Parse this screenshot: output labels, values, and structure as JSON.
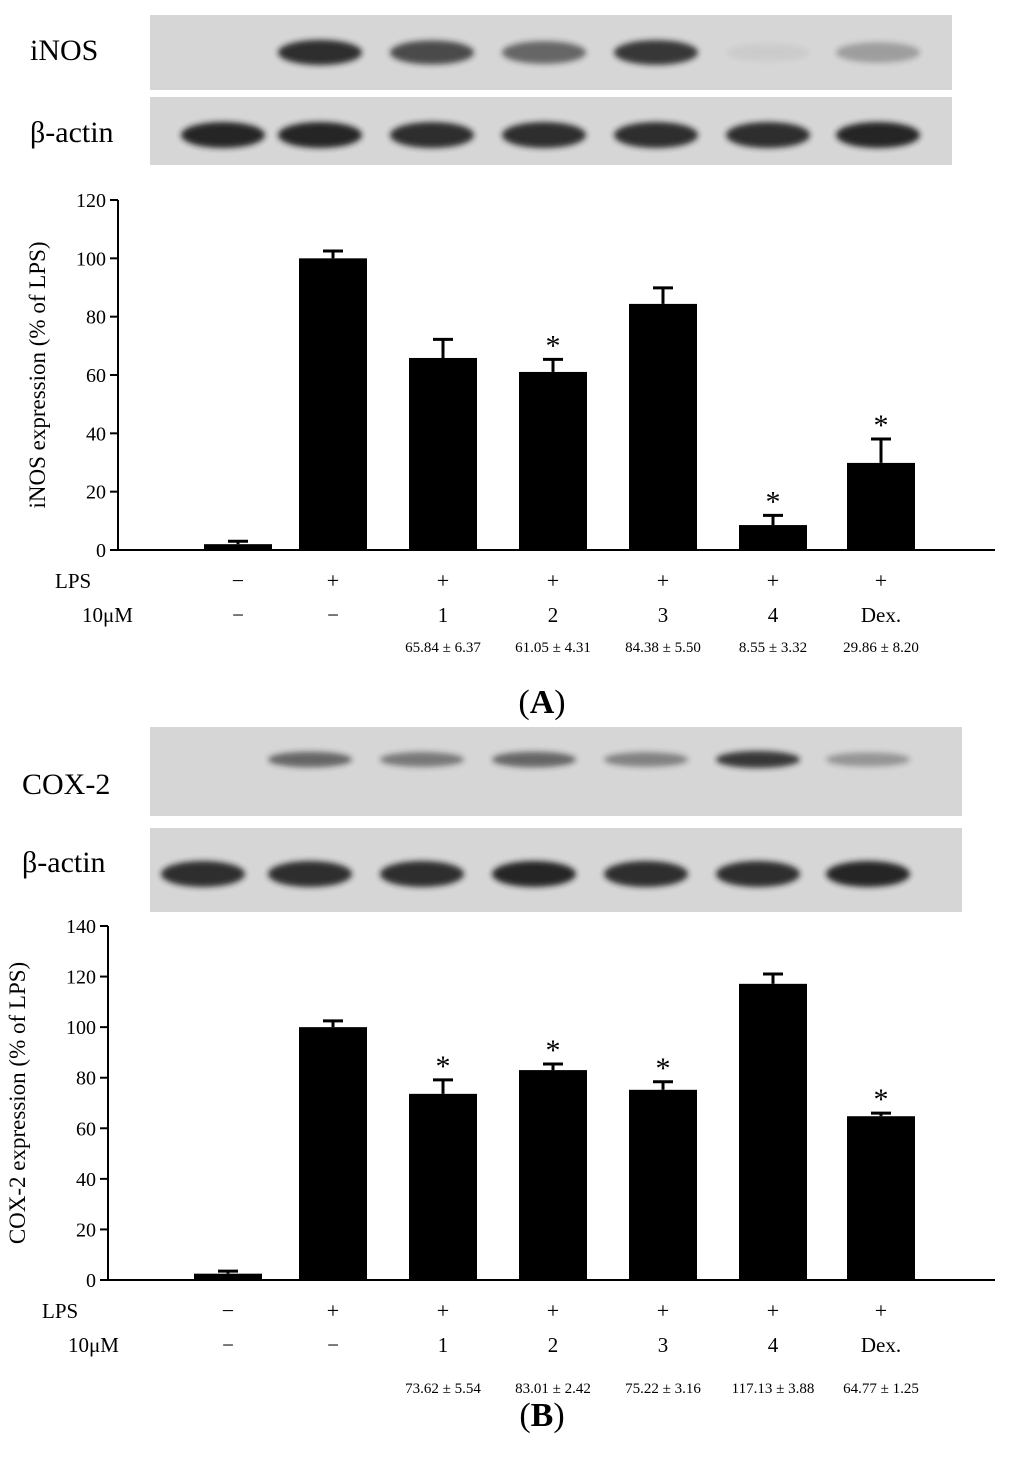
{
  "figure": {
    "panel_labels": [
      {
        "text": "A"
      },
      {
        "text": "B"
      }
    ],
    "treatment_row_labels": [
      "LPS",
      "10μM"
    ],
    "lps_row": [
      "−",
      "+",
      "+",
      "+",
      "+",
      "+",
      "+"
    ],
    "compound_row": [
      "−",
      "−",
      "1",
      "2",
      "3",
      "4",
      "Dex."
    ],
    "colors": {
      "bar": "#000000",
      "axis": "#000000",
      "blot_bg": "#d6d6d6",
      "band": "#1a1a1a"
    }
  },
  "chart_data": [
    {
      "type": "bar",
      "panel": "A",
      "ylabel": "iNOS expression (% of LPS)",
      "ylim": [
        0,
        120
      ],
      "yticks": [
        0,
        20,
        40,
        60,
        80,
        100,
        120
      ],
      "categories": [
        "−/−",
        "+/−",
        "+/1",
        "+/2",
        "+/3",
        "+/4",
        "+/Dex."
      ],
      "values": [
        2,
        100,
        65.84,
        61.05,
        84.38,
        8.55,
        29.86
      ],
      "errors": [
        1,
        2.5,
        6.37,
        4.31,
        5.5,
        3.32,
        8.2
      ],
      "significant": [
        false,
        false,
        false,
        true,
        false,
        true,
        true
      ],
      "value_labels": [
        "",
        "",
        "65.84 ± 6.37",
        "61.05 ± 4.31",
        "84.38 ± 5.50",
        "8.55 ± 3.32",
        "29.86 ± 8.20"
      ],
      "blots": [
        {
          "label": "iNOS",
          "band_intensity": [
            0,
            0.9,
            0.75,
            0.6,
            0.85,
            0.05,
            0.3
          ]
        },
        {
          "label": "β-actin",
          "band_intensity": [
            0.95,
            0.95,
            0.9,
            0.9,
            0.9,
            0.9,
            0.95
          ]
        }
      ],
      "grid": false
    },
    {
      "type": "bar",
      "panel": "B",
      "ylabel": "COX-2 expression (% of LPS)",
      "ylim": [
        0,
        140
      ],
      "yticks": [
        0,
        20,
        40,
        60,
        80,
        100,
        120,
        140
      ],
      "categories": [
        "−/−",
        "+/−",
        "+/1",
        "+/2",
        "+/3",
        "+/4",
        "+/Dex."
      ],
      "values": [
        2.5,
        100,
        73.62,
        83.01,
        75.22,
        117.13,
        64.77
      ],
      "errors": [
        1,
        2.5,
        5.54,
        2.42,
        3.16,
        3.88,
        1.25
      ],
      "significant": [
        false,
        false,
        true,
        true,
        true,
        false,
        true
      ],
      "value_labels": [
        "",
        "",
        "73.62 ± 5.54",
        "83.01 ± 2.42",
        "75.22 ± 3.16",
        "117.13 ± 3.88",
        "64.77 ± 1.25"
      ],
      "blots": [
        {
          "label": "COX-2",
          "band_intensity": [
            0,
            0.6,
            0.5,
            0.6,
            0.45,
            0.85,
            0.35
          ]
        },
        {
          "label": "β-actin",
          "band_intensity": [
            0.9,
            0.9,
            0.9,
            0.95,
            0.9,
            0.9,
            0.95
          ]
        }
      ],
      "grid": false
    }
  ]
}
